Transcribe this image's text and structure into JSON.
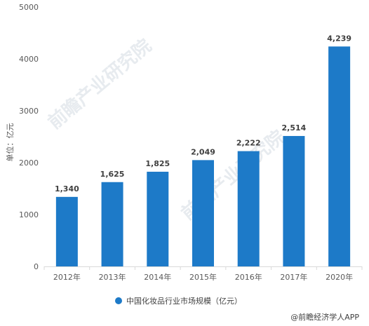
{
  "chart_data": {
    "type": "bar",
    "categories": [
      "2012年",
      "2013年",
      "2014年",
      "2015年",
      "2016年",
      "2017年",
      "2020年"
    ],
    "series": [
      {
        "name": "中国化妆品行业市场规模（亿元）",
        "values": [
          1340,
          1625,
          1825,
          2049,
          2222,
          2514,
          4239
        ],
        "color": "#1d7ac8"
      }
    ],
    "data_labels": [
      "1,340",
      "1,625",
      "1,825",
      "2,049",
      "2,222",
      "2,514",
      "4,239"
    ],
    "ylabel": "单位：亿元",
    "ylim": [
      0,
      5000
    ],
    "yticks": [
      0,
      1000,
      2000,
      3000,
      4000,
      5000
    ],
    "grid": false,
    "legend_position": "bottom-center"
  },
  "source": "@前瞻经济学人APP",
  "watermark": "前瞻产业研究院"
}
